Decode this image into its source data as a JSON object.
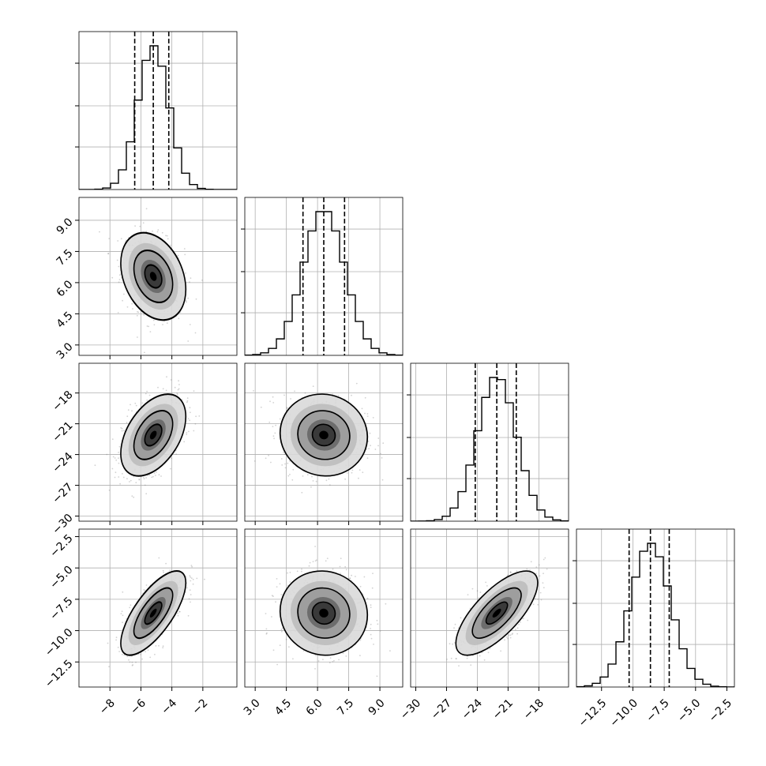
{
  "chart_data": {
    "type": "corner",
    "grid": true,
    "variables": [
      {
        "index": 0,
        "range": [
          -10,
          0.2
        ],
        "ticks": [
          {
            "v": -8,
            "t": "−8"
          },
          {
            "v": -6,
            "t": "−6"
          },
          {
            "v": -4,
            "t": "−4"
          },
          {
            "v": -2,
            "t": "−2"
          }
        ]
      },
      {
        "index": 1,
        "range": [
          2.5,
          10.1
        ],
        "ticks": [
          {
            "v": 3.0,
            "t": "3.0"
          },
          {
            "v": 4.5,
            "t": "4.5"
          },
          {
            "v": 6.0,
            "t": "6.0"
          },
          {
            "v": 7.5,
            "t": "7.5"
          },
          {
            "v": 9.0,
            "t": "9.0"
          }
        ]
      },
      {
        "index": 2,
        "range": [
          -30.5,
          -15.1
        ],
        "ticks": [
          {
            "v": -30,
            "t": "−30"
          },
          {
            "v": -27,
            "t": "−27"
          },
          {
            "v": -24,
            "t": "−24"
          },
          {
            "v": -21,
            "t": "−21"
          },
          {
            "v": -18,
            "t": "−18"
          }
        ]
      },
      {
        "index": 3,
        "range": [
          -14.5,
          -1.9
        ],
        "ticks": [
          {
            "v": -12.5,
            "t": "−12.5"
          },
          {
            "v": -10.0,
            "t": "−10.0"
          },
          {
            "v": -7.5,
            "t": "−7.5"
          },
          {
            "v": -5.0,
            "t": "−5.0"
          },
          {
            "v": -2.5,
            "t": "−2.5"
          }
        ]
      }
    ],
    "statistics": [
      {
        "variable": 0,
        "mean": -5.2,
        "sd": 1.0,
        "quantiles": [
          -6.4,
          -5.2,
          -4.2
        ]
      },
      {
        "variable": 1,
        "mean": 6.3,
        "sd": 1.0,
        "quantiles": [
          5.3,
          6.3,
          7.3
        ]
      },
      {
        "variable": 2,
        "mean": -22.1,
        "sd": 1.9,
        "quantiles": [
          -24.2,
          -22.1,
          -20.2
        ]
      },
      {
        "variable": 3,
        "mean": -8.6,
        "sd": 1.6,
        "quantiles": [
          -10.3,
          -8.6,
          -7.1
        ]
      }
    ],
    "correlations": [
      {
        "pair": [
          0,
          1
        ],
        "r": -0.3
      },
      {
        "pair": [
          0,
          2
        ],
        "r": 0.45
      },
      {
        "pair": [
          0,
          3
        ],
        "r": 0.72
      },
      {
        "pair": [
          1,
          2
        ],
        "r": -0.05
      },
      {
        "pair": [
          1,
          3
        ],
        "r": -0.05
      },
      {
        "pair": [
          2,
          3
        ],
        "r": 0.72
      }
    ],
    "contour_levels": [
      "inner",
      "middle",
      "outer"
    ],
    "colors": {
      "hist": "#000000",
      "scatter": "#7f7f7f",
      "grid": "#b0b0b0",
      "frame": "#000000"
    }
  }
}
